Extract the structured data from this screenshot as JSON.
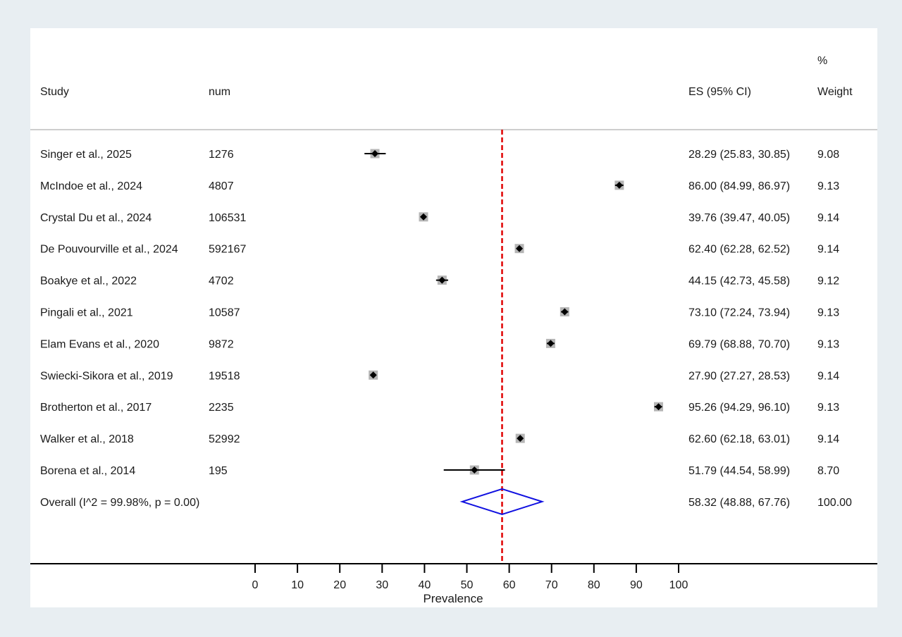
{
  "chart_data": {
    "type": "forest",
    "columns": {
      "study": "Study",
      "num": "num",
      "es": "ES (95% CI)",
      "weight_line1": "%",
      "weight_line2": "Weight"
    },
    "studies": [
      {
        "study": "Singer et al., 2025",
        "num": "1276",
        "es": 28.29,
        "lo": 25.83,
        "hi": 30.85,
        "es_text": "28.29 (25.83, 30.85)",
        "weight": "9.08"
      },
      {
        "study": "McIndoe et al., 2024",
        "num": "4807",
        "es": 86.0,
        "lo": 84.99,
        "hi": 86.97,
        "es_text": "86.00 (84.99, 86.97)",
        "weight": "9.13"
      },
      {
        "study": "Crystal Du et al., 2024",
        "num": "106531",
        "es": 39.76,
        "lo": 39.47,
        "hi": 40.05,
        "es_text": "39.76 (39.47, 40.05)",
        "weight": "9.14"
      },
      {
        "study": "De Pouvourville et al., 2024",
        "num": "592167",
        "es": 62.4,
        "lo": 62.28,
        "hi": 62.52,
        "es_text": "62.40 (62.28, 62.52)",
        "weight": "9.14"
      },
      {
        "study": "Boakye et al., 2022",
        "num": "4702",
        "es": 44.15,
        "lo": 42.73,
        "hi": 45.58,
        "es_text": "44.15 (42.73, 45.58)",
        "weight": "9.12"
      },
      {
        "study": "Pingali et al., 2021",
        "num": "10587",
        "es": 73.1,
        "lo": 72.24,
        "hi": 73.94,
        "es_text": "73.10 (72.24, 73.94)",
        "weight": "9.13"
      },
      {
        "study": "Elam Evans et al., 2020",
        "num": "9872",
        "es": 69.79,
        "lo": 68.88,
        "hi": 70.7,
        "es_text": "69.79 (68.88, 70.70)",
        "weight": "9.13"
      },
      {
        "study": "Swiecki-Sikora et al., 2019",
        "num": "19518",
        "es": 27.9,
        "lo": 27.27,
        "hi": 28.53,
        "es_text": "27.90 (27.27, 28.53)",
        "weight": "9.14"
      },
      {
        "study": "Brotherton et al., 2017",
        "num": "2235",
        "es": 95.26,
        "lo": 94.29,
        "hi": 96.1,
        "es_text": "95.26 (94.29, 96.10)",
        "weight": "9.13"
      },
      {
        "study": "Walker et al., 2018",
        "num": "52992",
        "es": 62.6,
        "lo": 62.18,
        "hi": 63.01,
        "es_text": "62.60 (62.18, 63.01)",
        "weight": "9.14"
      },
      {
        "study": "Borena et al., 2014",
        "num": "195",
        "es": 51.79,
        "lo": 44.54,
        "hi": 58.99,
        "es_text": "51.79 (44.54, 58.99)",
        "weight": "8.70"
      }
    ],
    "overall": {
      "label": "Overall  (I^2 = 99.98%, p = 0.00)",
      "es": 58.32,
      "lo": 48.88,
      "hi": 67.76,
      "es_text": "58.32 (48.88, 67.76)",
      "weight": "100.00"
    },
    "x_ticks": [
      0,
      10,
      20,
      30,
      40,
      50,
      60,
      70,
      80,
      90,
      100
    ],
    "xlim": [
      0,
      100
    ],
    "xlabel": "Prevalence",
    "colors": {
      "background": "#e8eef2",
      "panel": "#ffffff",
      "marker": "#000000",
      "marker_box": "#b5b5b5",
      "ci_line": "#000000",
      "pooled_line": "#e00000",
      "diamond": "#1010e0"
    }
  }
}
